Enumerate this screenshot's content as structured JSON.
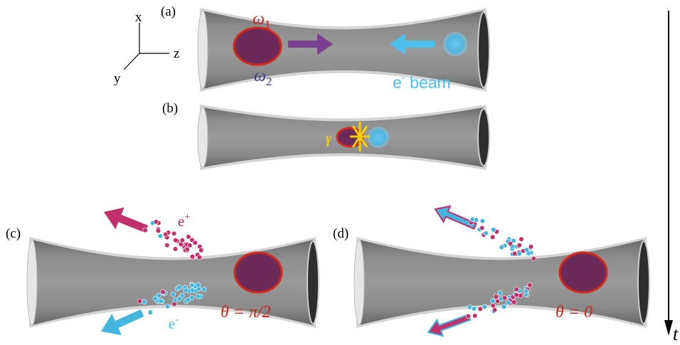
{
  "axes": {
    "x": "x",
    "y": "y",
    "z": "z"
  },
  "time_label": "t",
  "panels": [
    {
      "label": "(a)",
      "frequency_1": {
        "symbol": "ω",
        "subscript": "1"
      },
      "frequency_2": {
        "symbol": "ω",
        "subscript": "2"
      },
      "beam": {
        "particle": "e",
        "charge": "-",
        "text": " beam"
      }
    },
    {
      "label": "(b)",
      "photon": "γ"
    },
    {
      "label": "(c)",
      "positron": {
        "particle": "e",
        "charge": "+"
      },
      "electron": {
        "particle": "e",
        "charge": "-"
      },
      "angle": "θ = π/2"
    },
    {
      "label": "(d)",
      "angle": "θ = 0"
    }
  ]
}
